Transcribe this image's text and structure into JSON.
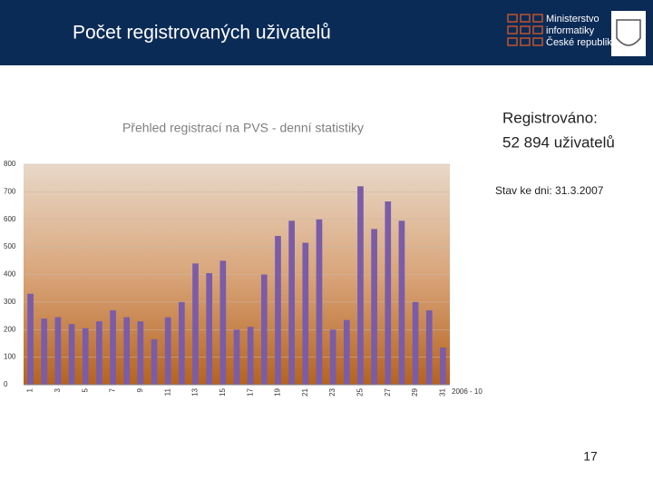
{
  "header": {
    "title": "Počet registrovaných uživatelů"
  },
  "logo": {
    "lines": [
      "Ministerstvo",
      "informatiky",
      "České republiky"
    ]
  },
  "info": {
    "registered_label": "Registrováno:",
    "registered_value": "52 894 uživatelů",
    "status": "Stav ke dni: 31.3.2007"
  },
  "page_number": "17",
  "chart_data": {
    "type": "bar",
    "title": "Přehled registrací na PVS - denní statistiky",
    "categories": [
      "1",
      null,
      "3",
      null,
      "5",
      null,
      "7",
      null,
      "9",
      null,
      "11",
      null,
      "13",
      null,
      "15",
      null,
      "17",
      null,
      "19",
      null,
      "21",
      null,
      "23",
      null,
      "25",
      null,
      "27",
      null,
      "29",
      null,
      "31"
    ],
    "series": [
      {
        "name": "2006 - 10",
        "color": "#7a5ca8",
        "values": [
          330,
          240,
          245,
          220,
          205,
          230,
          270,
          245,
          230,
          165,
          245,
          300,
          440,
          405,
          450,
          200,
          210,
          400,
          540,
          595,
          515,
          600,
          200,
          235,
          720,
          565,
          665,
          595,
          300,
          270,
          135
        ]
      }
    ],
    "ylim": [
      0,
      800
    ],
    "yticks": [
      0,
      100,
      200,
      300,
      400,
      500,
      600,
      700,
      800
    ],
    "grid": true
  }
}
